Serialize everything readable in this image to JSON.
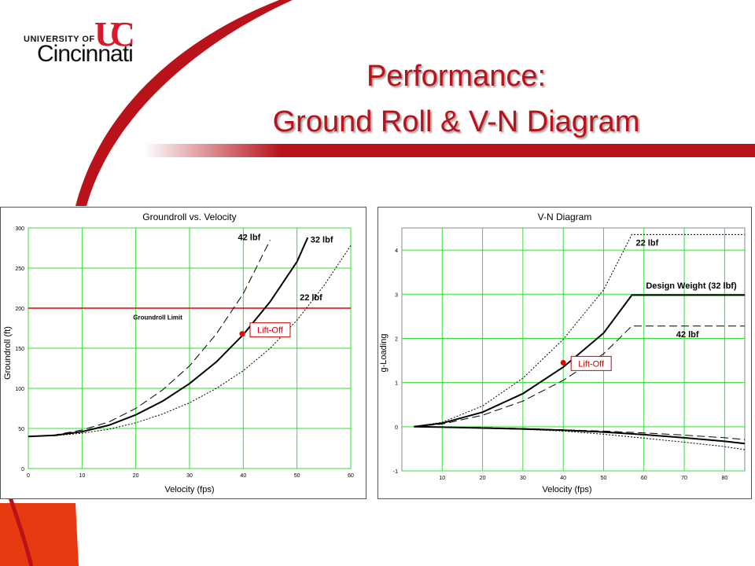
{
  "logo": {
    "line1": "UNIVERSITY OF",
    "line2": "Cincinnati"
  },
  "title": {
    "line1": "Performance:",
    "line2": "Ground Roll & V-N Diagram"
  },
  "colors": {
    "brand_red": "#b9121b",
    "grid": "#33dd33",
    "limit_line": "#dd0000"
  },
  "chart_data": [
    {
      "type": "line",
      "title": "Groundroll vs. Velocity",
      "xlabel": "Velocity (fps)",
      "ylabel": "Groundroll (ft)",
      "xlim": [
        0,
        60
      ],
      "ylim": [
        0,
        300
      ],
      "xticks": [
        0,
        10,
        20,
        30,
        40,
        50,
        60
      ],
      "yticks": [
        0,
        50,
        100,
        150,
        200,
        250,
        300
      ],
      "grid": true,
      "series": [
        {
          "name": "42 lbf",
          "style": "dashed",
          "x": [
            0,
            5,
            10,
            15,
            20,
            25,
            30,
            35,
            40,
            45
          ],
          "y": [
            40,
            42,
            48,
            58,
            75,
            98,
            128,
            168,
            218,
            285
          ]
        },
        {
          "name": "32 lbf",
          "style": "solid",
          "x": [
            0,
            5,
            10,
            15,
            20,
            25,
            30,
            35,
            40,
            45,
            50,
            52
          ],
          "y": [
            40,
            41.5,
            46,
            54,
            67,
            84,
            106,
            133,
            167,
            208,
            258,
            288
          ]
        },
        {
          "name": "22 lbf",
          "style": "dotted",
          "x": [
            0,
            5,
            10,
            15,
            20,
            25,
            30,
            35,
            40,
            45,
            50,
            55,
            60
          ],
          "y": [
            40,
            41,
            44,
            49,
            57,
            68,
            82,
            100,
            122,
            150,
            185,
            228,
            278
          ]
        }
      ],
      "hline": {
        "y": 200,
        "label": "Groundroll Limit"
      },
      "liftoff": {
        "x": 39.8,
        "y": 168,
        "label": "Lift-Off"
      }
    },
    {
      "type": "line",
      "title": "V-N Diagram",
      "xlabel": "Velocity (fps)",
      "ylabel": "g-Loading",
      "xlim": [
        0,
        85
      ],
      "ylim": [
        -1,
        4.5
      ],
      "xticks": [
        10,
        20,
        30,
        40,
        50,
        60,
        70,
        80
      ],
      "yticks": [
        -1,
        0,
        1,
        2,
        3,
        4
      ],
      "grid": true,
      "series": [
        {
          "name": "22 lbf",
          "style": "dotted",
          "x": [
            3,
            10,
            20,
            30,
            40,
            50,
            57,
            85
          ],
          "y": [
            0,
            0.1,
            0.47,
            1.1,
            1.98,
            3.1,
            4.35,
            4.35
          ]
        },
        {
          "name": "Design Weight (32 lbf)",
          "style": "solid",
          "x": [
            3,
            10,
            20,
            30,
            40,
            50,
            57,
            85
          ],
          "y": [
            0,
            0.08,
            0.33,
            0.75,
            1.35,
            2.12,
            2.98,
            2.98
          ]
        },
        {
          "name": "42 lbf",
          "style": "dashed",
          "x": [
            3,
            10,
            20,
            30,
            40,
            50,
            57,
            85
          ],
          "y": [
            0,
            0.06,
            0.26,
            0.58,
            1.05,
            1.65,
            2.28,
            2.28
          ]
        },
        {
          "name": "",
          "style": "solid",
          "x": [
            3,
            10,
            20,
            30,
            40,
            50,
            60,
            70,
            80,
            85
          ],
          "y": [
            0,
            -0.01,
            -0.03,
            -0.05,
            -0.08,
            -0.12,
            -0.18,
            -0.25,
            -0.33,
            -0.38
          ]
        },
        {
          "name": "",
          "style": "dashed",
          "x": [
            3,
            10,
            20,
            30,
            40,
            50,
            60,
            70,
            80,
            85
          ],
          "y": [
            0,
            -0.01,
            -0.02,
            -0.04,
            -0.07,
            -0.1,
            -0.14,
            -0.19,
            -0.25,
            -0.29
          ]
        },
        {
          "name": "",
          "style": "dotted",
          "x": [
            3,
            10,
            20,
            30,
            40,
            50,
            60,
            70,
            80,
            85
          ],
          "y": [
            0,
            -0.01,
            -0.03,
            -0.06,
            -0.1,
            -0.17,
            -0.26,
            -0.35,
            -0.45,
            -0.52
          ]
        }
      ],
      "liftoff": {
        "x": 40,
        "y": 1.45,
        "label": "Lift-Off"
      }
    }
  ]
}
